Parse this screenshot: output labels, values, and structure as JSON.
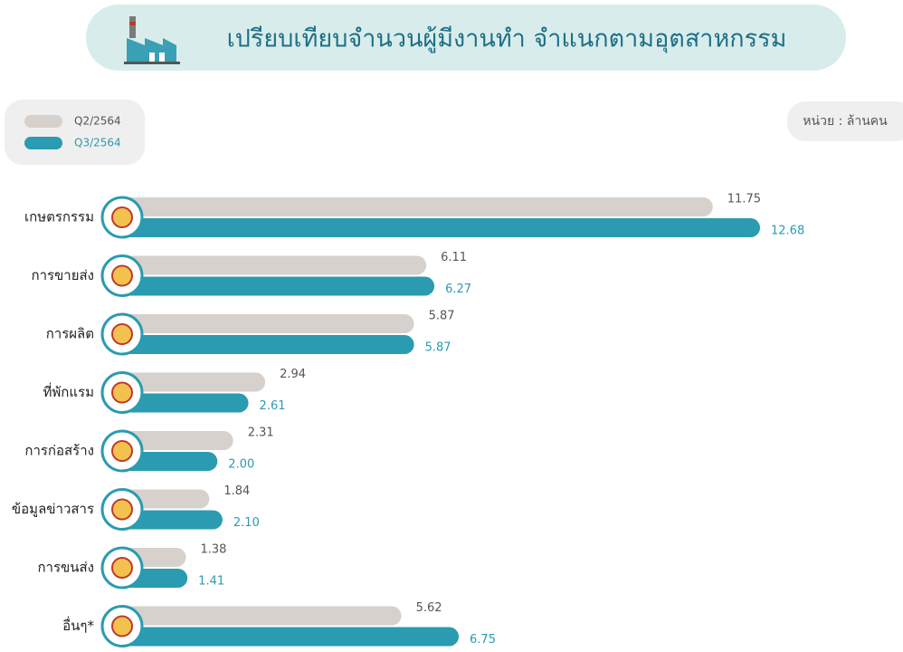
{
  "chart_data": {
    "type": "bar",
    "orientation": "horizontal",
    "title": "เปรียบเทียบจำนวนผู้มีงานทำ จำแนกตามอุตสาหกรรม",
    "unit_note": "หน่วย : ล้านคน",
    "categories": [
      "เกษตรกรรม",
      "การขายส่ง",
      "การผลิต",
      "ที่พักแรม",
      "การก่อสร้าง",
      "ข้อมูลข่าวสาร",
      "การขนส่ง",
      "อื่นๆ*"
    ],
    "series": [
      {
        "name": "Q2/2564",
        "color": "#d6d1cc",
        "values": [
          11.75,
          6.11,
          5.87,
          2.94,
          2.31,
          1.84,
          1.38,
          5.62
        ]
      },
      {
        "name": "Q3/2564",
        "color": "#2a9bb0",
        "values": [
          12.68,
          6.27,
          5.87,
          2.61,
          2.0,
          2.1,
          1.41,
          6.75
        ],
        "value_labels": [
          "12.68",
          "6.27",
          "5.87",
          "2.61",
          "2.00",
          "2.10",
          "1.41",
          "6.75"
        ]
      }
    ]
  }
}
